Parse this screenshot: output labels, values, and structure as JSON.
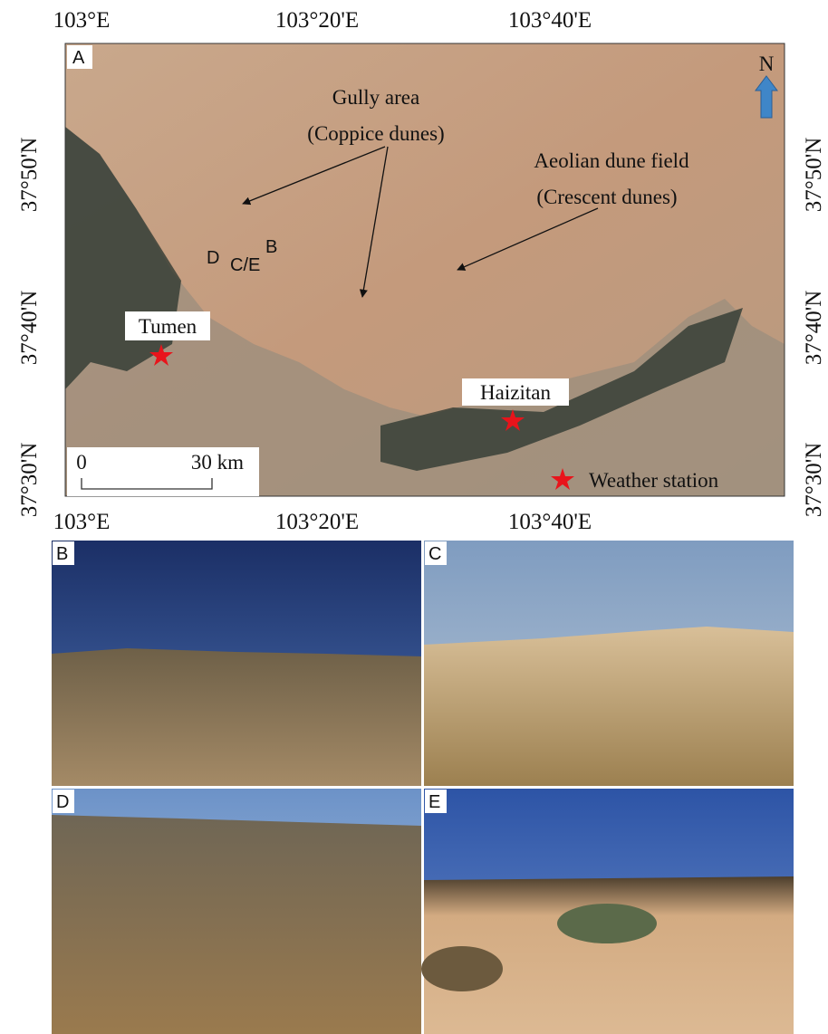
{
  "map": {
    "panel_label": "A",
    "lon_labels": [
      "103°E",
      "103°20'E",
      "103°40'E"
    ],
    "lat_labels": [
      "37°50'N",
      "37°40'N",
      "37°30'N"
    ],
    "annotations": {
      "gully_area": "Gully area",
      "gully_sub": "(Coppice dunes)",
      "dune_field": "Aeolian dune field",
      "dune_sub": "(Crescent dunes)"
    },
    "sites": {
      "d": "D",
      "ce": "C/E",
      "b": "B"
    },
    "places": {
      "tumen": "Tumen",
      "haizitan": "Haizitan",
      "weather": "Weather station"
    },
    "scale": {
      "start": "0",
      "end": "30 km"
    },
    "north": "N"
  },
  "photos": {
    "b": "B",
    "c": "C",
    "d": "D",
    "e": "E"
  }
}
